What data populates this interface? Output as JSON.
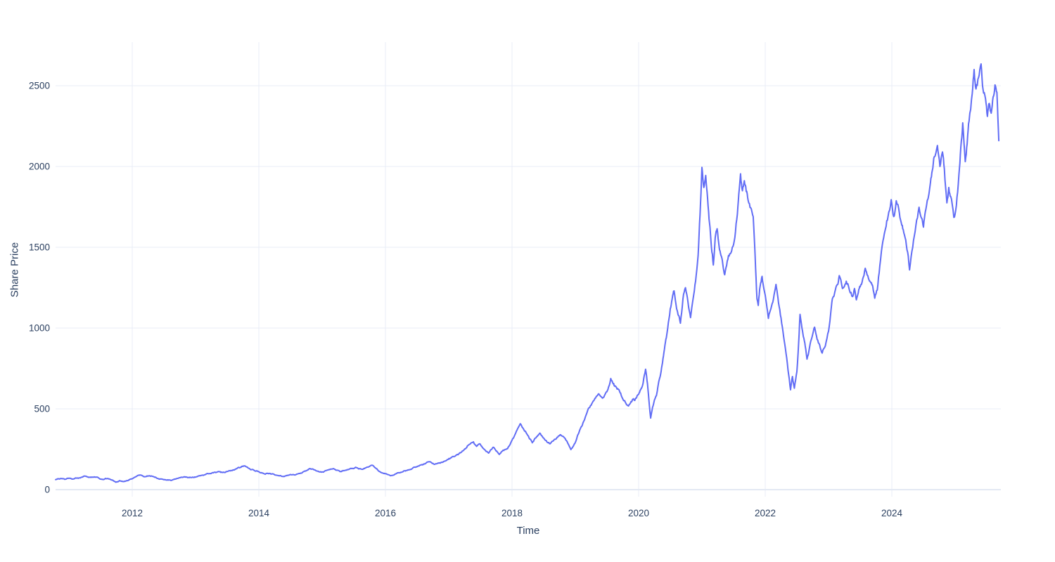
{
  "figure": {
    "background_color": "#ffffff",
    "text_color": "#2a3f5f",
    "grid_color": "#e8ecf7",
    "zeroline_color": "#e3e9f3"
  },
  "chart_data": {
    "type": "line",
    "title": "",
    "xlabel": "Time",
    "ylabel": "Share Price",
    "x_ticks": [
      2012,
      2014,
      2016,
      2018,
      2020,
      2022,
      2024
    ],
    "y_ticks": [
      0,
      500,
      1000,
      1500,
      2000,
      2500
    ],
    "x_range": [
      2010.789,
      2025.722
    ],
    "y_range": [
      -43.5,
      2769.6
    ],
    "grid": true,
    "legend": "none",
    "noise": {
      "seed": 12345,
      "rel": 0.085,
      "abs": 18,
      "min_dt": 0.013
    },
    "series": [
      {
        "name": "Share Price",
        "color": "#616df5",
        "line_width": 2,
        "x": [
          2010.79,
          2010.86,
          2010.93,
          2011.0,
          2011.06,
          2011.13,
          2011.2,
          2011.27,
          2011.33,
          2011.4,
          2011.47,
          2011.54,
          2011.6,
          2011.67,
          2011.74,
          2011.8,
          2011.86,
          2011.93,
          2012.0,
          2012.07,
          2012.13,
          2012.2,
          2012.27,
          2012.34,
          2012.41,
          2012.48,
          2012.55,
          2012.61,
          2012.68,
          2012.75,
          2012.82,
          2012.89,
          2012.95,
          2013.02,
          2013.09,
          2013.16,
          2013.23,
          2013.3,
          2013.37,
          2013.43,
          2013.5,
          2013.57,
          2013.64,
          2013.7,
          2013.77,
          2013.83,
          2013.9,
          2013.96,
          2014.03,
          2014.1,
          2014.17,
          2014.24,
          2014.3,
          2014.39,
          2014.46,
          2014.53,
          2014.6,
          2014.67,
          2014.74,
          2014.8,
          2014.87,
          2014.93,
          2014.99,
          2015.06,
          2015.12,
          2015.17,
          2015.23,
          2015.28,
          2015.35,
          2015.41,
          2015.47,
          2015.52,
          2015.58,
          2015.64,
          2015.7,
          2015.75,
          2015.8,
          2015.85,
          2015.91,
          2015.97,
          2016.03,
          2016.08,
          2016.14,
          2016.2,
          2016.27,
          2016.33,
          2016.4,
          2016.47,
          2016.53,
          2016.58,
          2016.64,
          2016.69,
          2016.74,
          2016.78,
          2016.84,
          2016.89,
          2016.95,
          2017.02,
          2017.08,
          2017.13,
          2017.19,
          2017.24,
          2017.3,
          2017.35,
          2017.39,
          2017.44,
          2017.49,
          2017.53,
          2017.58,
          2017.63,
          2017.67,
          2017.71,
          2017.76,
          2017.8,
          2017.84,
          2017.88,
          2017.93,
          2017.97,
          2018.01,
          2018.06,
          2018.1,
          2018.13,
          2018.17,
          2018.21,
          2018.25,
          2018.29,
          2018.32,
          2018.36,
          2018.4,
          2018.44,
          2018.48,
          2018.52,
          2018.56,
          2018.6,
          2018.64,
          2018.68,
          2018.72,
          2018.76,
          2018.8,
          2018.84,
          2018.88,
          2018.93,
          2018.97,
          2019.0,
          2019.04,
          2019.08,
          2019.12,
          2019.17,
          2019.22,
          2019.26,
          2019.3,
          2019.34,
          2019.38,
          2019.42,
          2019.46,
          2019.5,
          2019.53,
          2019.56,
          2019.59,
          2019.62,
          2019.66,
          2019.7,
          2019.73,
          2019.77,
          2019.8,
          2019.84,
          2019.88,
          2019.91,
          2019.94,
          2019.97,
          2020.0,
          2020.03,
          2020.07,
          2020.11,
          2020.14,
          2020.17,
          2020.19,
          2020.22,
          2020.25,
          2020.28,
          2020.31,
          2020.34,
          2020.37,
          2020.4,
          2020.43,
          2020.46,
          2020.5,
          2020.56,
          2020.6,
          2020.66,
          2020.7,
          2020.74,
          2020.78,
          2020.82,
          2020.86,
          2020.9,
          2020.94,
          2020.97,
          2021.0,
          2021.03,
          2021.06,
          2021.09,
          2021.12,
          2021.15,
          2021.18,
          2021.21,
          2021.24,
          2021.27,
          2021.3,
          2021.33,
          2021.36,
          2021.4,
          2021.44,
          2021.48,
          2021.52,
          2021.56,
          2021.59,
          2021.61,
          2021.64,
          2021.67,
          2021.7,
          2021.73,
          2021.77,
          2021.81,
          2021.84,
          2021.87,
          2021.89,
          2021.92,
          2021.95,
          2021.98,
          2022.02,
          2022.05,
          2022.09,
          2022.13,
          2022.17,
          2022.2,
          2022.24,
          2022.28,
          2022.32,
          2022.36,
          2022.4,
          2022.43,
          2022.46,
          2022.5,
          2022.52,
          2022.55,
          2022.58,
          2022.61,
          2022.64,
          2022.66,
          2022.7,
          2022.74,
          2022.78,
          2022.82,
          2022.86,
          2022.9,
          2022.95,
          2023.0,
          2023.06,
          2023.11,
          2023.17,
          2023.22,
          2023.28,
          2023.33,
          2023.38,
          2023.41,
          2023.44,
          2023.5,
          2023.54,
          2023.58,
          2023.62,
          2023.67,
          2023.7,
          2023.73,
          2023.77,
          2023.81,
          2023.86,
          2023.9,
          2023.94,
          2023.99,
          2024.03,
          2024.07,
          2024.12,
          2024.18,
          2024.22,
          2024.26,
          2024.28,
          2024.33,
          2024.38,
          2024.43,
          2024.47,
          2024.5,
          2024.56,
          2024.61,
          2024.67,
          2024.72,
          2024.76,
          2024.8,
          2024.83,
          2024.87,
          2024.9,
          2024.93,
          2024.98,
          2025.02,
          2025.06,
          2025.09,
          2025.12,
          2025.16,
          2025.19,
          2025.22,
          2025.27,
          2025.3,
          2025.33,
          2025.37,
          2025.41,
          2025.44,
          2025.48,
          2025.51,
          2025.54,
          2025.57,
          2025.6,
          2025.63,
          2025.66,
          2025.675,
          2025.69
        ],
        "y": [
          62,
          67,
          64,
          70,
          66,
          72,
          77,
          83,
          76,
          79,
          72,
          62,
          68,
          60,
          46,
          56,
          50,
          55,
          68,
          82,
          90,
          80,
          86,
          80,
          68,
          64,
          60,
          57,
          66,
          74,
          80,
          75,
          77,
          80,
          88,
          94,
          100,
          108,
          112,
          106,
          112,
          118,
          128,
          136,
          147,
          134,
          125,
          116,
          104,
          95,
          101,
          95,
          88,
          82,
          88,
          92,
          96,
          102,
          115,
          130,
          123,
          114,
          108,
          118,
          124,
          129,
          120,
          112,
          118,
          124,
          130,
          136,
          128,
          126,
          138,
          144,
          150,
          132,
          112,
          100,
          94,
          86,
          92,
          104,
          110,
          118,
          126,
          138,
          146,
          155,
          164,
          172,
          162,
          157,
          164,
          170,
          178,
          192,
          204,
          216,
          230,
          245,
          272,
          288,
          296,
          268,
          284,
          262,
          242,
          226,
          248,
          262,
          238,
          218,
          236,
          246,
          254,
          280,
          315,
          352,
          385,
          408,
          382,
          362,
          335,
          312,
          290,
          316,
          330,
          350,
          328,
          308,
          292,
          284,
          300,
          312,
          324,
          340,
          330,
          316,
          288,
          248,
          270,
          292,
          340,
          378,
          412,
          462,
          508,
          532,
          556,
          580,
          588,
          570,
          582,
          606,
          640,
          688,
          662,
          640,
          622,
          608,
          578,
          550,
          534,
          518,
          545,
          560,
          552,
          572,
          590,
          618,
          658,
          745,
          655,
          520,
          443,
          510,
          555,
          580,
          650,
          700,
          770,
          850,
          930,
          1000,
          1120,
          1230,
          1120,
          1030,
          1180,
          1250,
          1160,
          1065,
          1180,
          1290,
          1450,
          1700,
          1995,
          1870,
          1945,
          1800,
          1650,
          1500,
          1390,
          1560,
          1615,
          1510,
          1450,
          1395,
          1330,
          1415,
          1460,
          1500,
          1560,
          1705,
          1860,
          1955,
          1850,
          1912,
          1845,
          1790,
          1745,
          1690,
          1450,
          1180,
          1140,
          1260,
          1320,
          1240,
          1150,
          1060,
          1120,
          1180,
          1270,
          1190,
          1080,
          980,
          870,
          740,
          618,
          700,
          628,
          730,
          850,
          1085,
          1000,
          938,
          870,
          808,
          880,
          945,
          1005,
          930,
          895,
          845,
          890,
          980,
          1180,
          1240,
          1325,
          1245,
          1290,
          1235,
          1195,
          1245,
          1175,
          1255,
          1305,
          1370,
          1325,
          1280,
          1255,
          1185,
          1235,
          1385,
          1540,
          1615,
          1690,
          1795,
          1690,
          1788,
          1710,
          1610,
          1545,
          1445,
          1360,
          1500,
          1635,
          1748,
          1680,
          1625,
          1790,
          1900,
          2060,
          2130,
          2000,
          2090,
          1985,
          1775,
          1870,
          1815,
          1685,
          1760,
          1950,
          2120,
          2270,
          2030,
          2140,
          2280,
          2450,
          2600,
          2480,
          2550,
          2635,
          2480,
          2420,
          2310,
          2390,
          2330,
          2430,
          2505,
          2460,
          2300,
          2160
        ]
      }
    ]
  }
}
